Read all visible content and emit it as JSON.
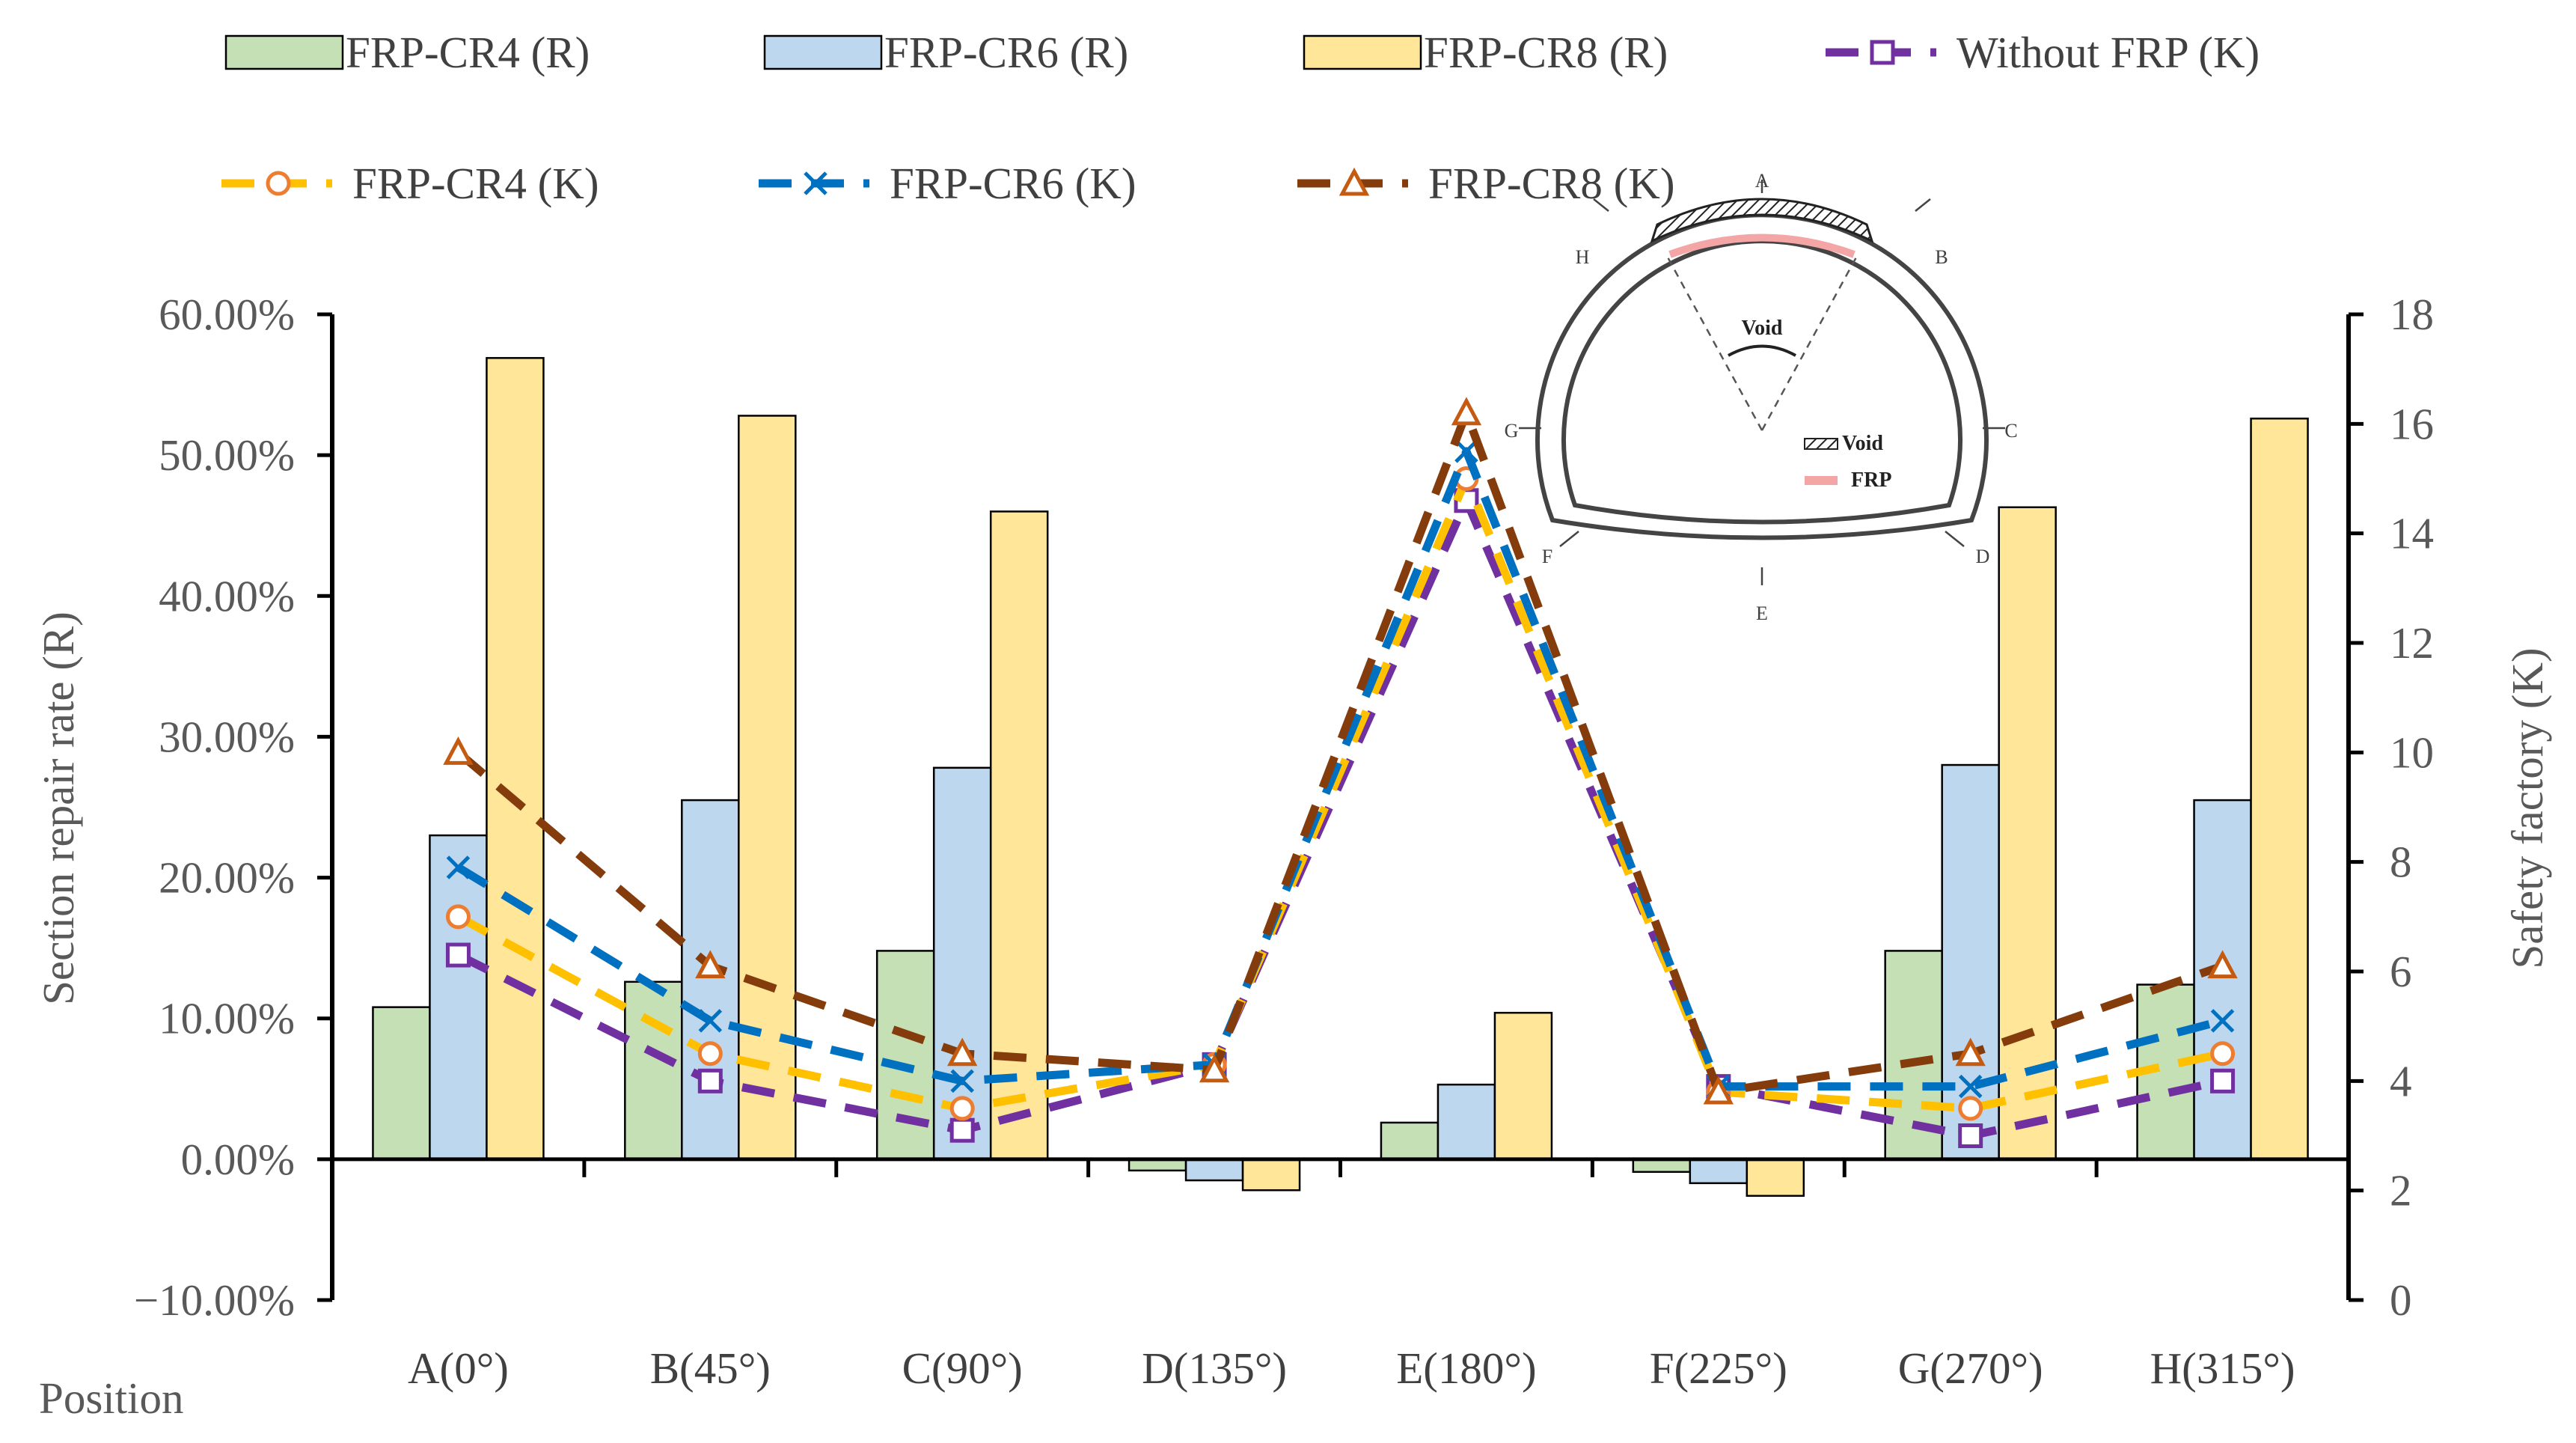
{
  "chart_data": {
    "type": "bar",
    "categories": [
      "A(0°)",
      "B(45°)",
      "C(90°)",
      "D(135°)",
      "E(180°)",
      "F(225°)",
      "G(270°)",
      "H(315°)"
    ],
    "xlabel": "Position",
    "ylabel": "Section repair rate (R)",
    "y2label": "Safety factory (K)",
    "ylim": [
      -10,
      60
    ],
    "y2lim": [
      0,
      18
    ],
    "yticks": [
      "−10.00%",
      "0.00%",
      "10.00%",
      "20.00%",
      "30.00%",
      "40.00%",
      "50.00%",
      "60.00%"
    ],
    "y2ticks": [
      "0",
      "2",
      "4",
      "6",
      "8",
      "10",
      "12",
      "14",
      "16",
      "18"
    ],
    "bar_series": [
      {
        "name": "FRP-CR4  (R)",
        "color": "#c5e0b4",
        "values": [
          10.8,
          12.6,
          14.8,
          -0.8,
          2.6,
          -0.9,
          14.8,
          12.4
        ]
      },
      {
        "name": "FRP-CR6  (R)",
        "color": "#bdd7ee",
        "values": [
          23.0,
          25.5,
          27.8,
          -1.5,
          5.3,
          -1.7,
          28.0,
          25.5
        ]
      },
      {
        "name": "FRP-CR8  (R)",
        "color": "#ffe699",
        "values": [
          56.9,
          52.8,
          46.0,
          -2.2,
          10.4,
          -2.6,
          46.3,
          52.6
        ]
      }
    ],
    "line_series": [
      {
        "name": "Without FRP (K)",
        "color": "#7030a0",
        "marker": "square",
        "values": [
          6.3,
          4.0,
          3.1,
          4.3,
          14.6,
          3.9,
          3.0,
          4.0
        ]
      },
      {
        "name": "FRP-CR4 (K)",
        "color": "#ffc000",
        "marker": "circle",
        "marker_color": "#ed7d31",
        "values": [
          7.0,
          4.5,
          3.5,
          4.3,
          15.0,
          3.8,
          3.5,
          4.5
        ]
      },
      {
        "name": "FRP-CR6 (K)",
        "color": "#0070c0",
        "marker": "x",
        "values": [
          7.9,
          5.1,
          4.0,
          4.3,
          15.5,
          3.9,
          3.9,
          5.1
        ]
      },
      {
        "name": "FRP-CR8 (K)",
        "color": "#c55a11",
        "line_color": "#843c0c",
        "marker": "triangle",
        "values": [
          10.0,
          6.1,
          4.5,
          4.2,
          16.2,
          3.8,
          4.5,
          6.1
        ]
      }
    ],
    "legend_position": "top",
    "inset": {
      "point_labels": [
        "A",
        "B",
        "C",
        "D",
        "E",
        "F",
        "G",
        "H"
      ],
      "void_label": "Void",
      "legend_void": "Void",
      "legend_frp": "FRP"
    }
  }
}
